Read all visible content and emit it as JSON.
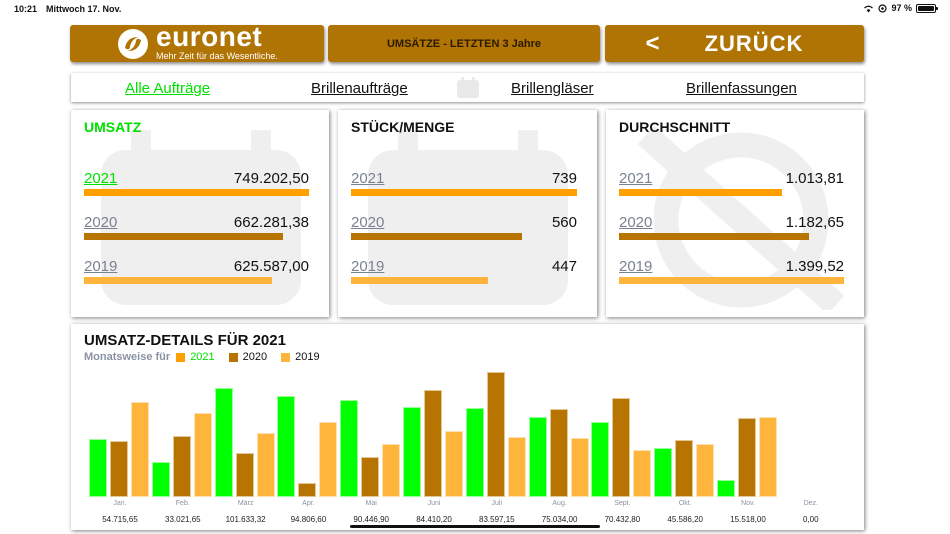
{
  "status_bar": {
    "time": "10:21",
    "date": "Mittwoch 17. Nov.",
    "battery": "97 %",
    "icons": [
      "wifi-icon",
      "focus-icon",
      "battery-icon"
    ]
  },
  "header": {
    "logo": {
      "brand": "euronet",
      "tagline": "Mehr Zeit für das Wesentliche."
    },
    "title": "UMSÄTZE - LETZTEN 3 Jahre",
    "back_label": "ZURÜCK",
    "back_icon": "chevron-left-icon",
    "brand_color": "#b07405"
  },
  "tabs": [
    {
      "label": "Alle Aufträge",
      "active": true
    },
    {
      "label": "Brillenaufträge",
      "active": false
    },
    {
      "label": "Brillengläser",
      "active": false
    },
    {
      "label": "Brillenfassungen",
      "active": false
    }
  ],
  "colors": {
    "y2021": "#ffa000",
    "y2020": "#b87400",
    "y2019": "#ffb53c",
    "green": "#00e000",
    "bar2021": "#00ff00"
  },
  "cards": {
    "umsatz": {
      "title": "UMSATZ",
      "rows": [
        {
          "year": "2021",
          "value": "749.202,50",
          "pct": 100
        },
        {
          "year": "2020",
          "value": "662.281,38",
          "pct": 88.4
        },
        {
          "year": "2019",
          "value": "625.587,00",
          "pct": 83.5
        }
      ]
    },
    "stueck": {
      "title": "STÜCK/MENGE",
      "rows": [
        {
          "year": "2021",
          "value": "739",
          "pct": 100
        },
        {
          "year": "2020",
          "value": "560",
          "pct": 75.8
        },
        {
          "year": "2019",
          "value": "447",
          "pct": 60.5
        }
      ]
    },
    "durchschnitt": {
      "title": "DURCHSCHNITT",
      "rows": [
        {
          "year": "2021",
          "value": "1.013,81",
          "pct": 72.4
        },
        {
          "year": "2020",
          "value": "1.182,65",
          "pct": 84.5
        },
        {
          "year": "2019",
          "value": "1.399,52",
          "pct": 100
        }
      ]
    }
  },
  "details": {
    "title": "UMSATZ-DETAILS FÜR 2021",
    "legend_label": "Monatsweise für",
    "legend": [
      "2021",
      "2020",
      "2019"
    ]
  },
  "chart_data": {
    "type": "bar",
    "title": "UMSATZ-DETAILS FÜR 2021",
    "subtitle": "Monatsweise für 2021 / 2020 / 2019",
    "categories": [
      "Jan.",
      "Feb.",
      "März",
      "Apr.",
      "Mai",
      "Juni",
      "Juli",
      "Aug.",
      "Sept.",
      "Okt.",
      "Nov.",
      "Dez."
    ],
    "value_labels": [
      "54.715,65",
      "33.021,65",
      "101.633,32",
      "94.806,60",
      "90.446,90",
      "84.410,20",
      "83.597,15",
      "75.034,00",
      "70.432,80",
      "45.586,20",
      "15.518,00",
      "0,00"
    ],
    "series": [
      {
        "name": "2021",
        "color": "#00ff00",
        "values": [
          54716,
          33022,
          101633,
          94807,
          90447,
          84410,
          83597,
          75034,
          70433,
          45586,
          15518,
          0
        ]
      },
      {
        "name": "2020",
        "color": "#b87400",
        "values": [
          52000,
          57000,
          41000,
          13000,
          37000,
          100000,
          117000,
          82000,
          93000,
          53000,
          74000,
          0
        ]
      },
      {
        "name": "2019",
        "color": "#ffb53c",
        "values": [
          89000,
          79000,
          60000,
          70000,
          50000,
          62000,
          56000,
          55000,
          44000,
          50000,
          75000,
          0
        ]
      }
    ],
    "xlabel": "",
    "ylabel": "",
    "ylim": [
      0,
      120000
    ],
    "grid": false,
    "legend_position": "top-left"
  }
}
